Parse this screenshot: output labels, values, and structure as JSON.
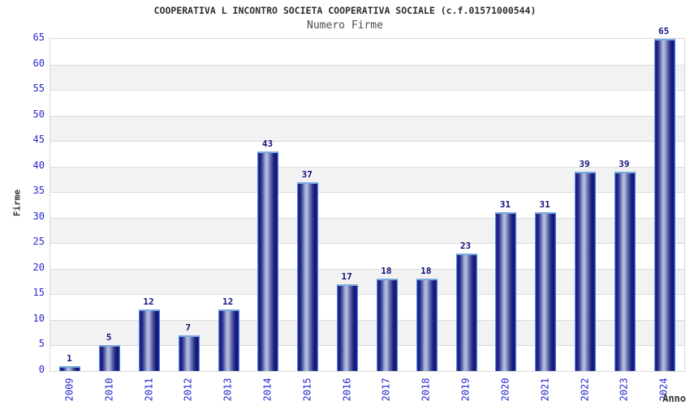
{
  "chart_data": {
    "type": "bar",
    "title": "COOPERATIVA L INCONTRO SOCIETA COOPERATIVA SOCIALE (c.f.01571000544)",
    "subtitle": "Numero Firme",
    "xlabel": "Anno",
    "ylabel": "Firme",
    "categories": [
      "2009",
      "2010",
      "2011",
      "2012",
      "2013",
      "2014",
      "2015",
      "2016",
      "2017",
      "2018",
      "2019",
      "2020",
      "2021",
      "2022",
      "2023",
      "2024"
    ],
    "values": [
      1,
      5,
      12,
      7,
      12,
      43,
      37,
      17,
      18,
      18,
      23,
      31,
      31,
      39,
      39,
      65
    ],
    "ylim": [
      0,
      65
    ],
    "ytick_step": 5,
    "grid": true,
    "legend": "none",
    "band_colors": [
      "#ffffff",
      "#f2f2f2"
    ],
    "colors": {
      "tick_label": "#2727cf",
      "value_label": "#12127d",
      "bar_dark": "#141677",
      "bar_light": "#b8c0e2",
      "bar_border": "#4a86d8",
      "gridline": "#dcdcdc",
      "plot_border": "#d9d9d9",
      "title": "#2e2e2e",
      "subtitle": "#4d4d4d",
      "axis_label": "#333333"
    }
  }
}
